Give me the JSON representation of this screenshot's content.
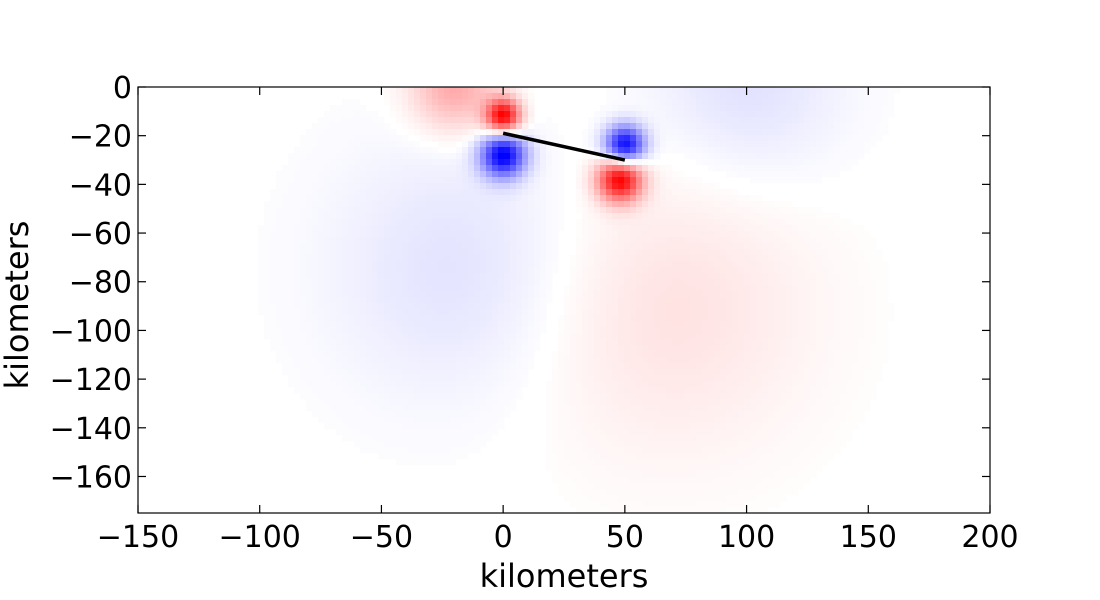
{
  "chart_data": {
    "type": "heatmap",
    "title": "",
    "xlabel": "kilometers",
    "ylabel": "kilometers",
    "xlim": [
      -150,
      200
    ],
    "ylim": [
      -175,
      0
    ],
    "x_ticks": [
      -150,
      -100,
      -50,
      0,
      50,
      100,
      150,
      200
    ],
    "y_ticks": [
      0,
      -20,
      -40,
      -60,
      -80,
      -100,
      -120,
      -140,
      -160
    ],
    "x_tick_labels": [
      "−150",
      "−100",
      "−50",
      "0",
      "50",
      "100",
      "150",
      "200"
    ],
    "y_tick_labels": [
      "0",
      "−20",
      "−40",
      "−60",
      "−80",
      "−100",
      "−120",
      "−140",
      "−160"
    ],
    "colormap": {
      "positive": "#ff0000",
      "zero": "#ffffff",
      "negative": "#0000ff"
    },
    "fault_line": {
      "x": [
        0,
        50
      ],
      "y": [
        -19,
        -30
      ],
      "color": "#000000"
    },
    "field_sources": [
      {
        "x": 0,
        "y": -12,
        "amplitude": 1.0,
        "spread": 7,
        "sign": "positive"
      },
      {
        "x": 0,
        "y": -28,
        "amplitude": -1.0,
        "spread": 9,
        "sign": "negative"
      },
      {
        "x": 50,
        "y": -24,
        "amplitude": -1.0,
        "spread": 8,
        "sign": "negative"
      },
      {
        "x": 48,
        "y": -38,
        "amplitude": 1.0,
        "spread": 9,
        "sign": "positive"
      },
      {
        "x": -20,
        "y": 0,
        "amplitude": 0.35,
        "spread": 18,
        "sign": "positive"
      },
      {
        "x": 100,
        "y": 0,
        "amplitude": -0.12,
        "spread": 40,
        "sign": "negative"
      },
      {
        "x": 65,
        "y": -90,
        "amplitude": 0.12,
        "spread": 60,
        "sign": "positive"
      },
      {
        "x": -15,
        "y": -75,
        "amplitude": -0.12,
        "spread": 55,
        "sign": "negative"
      }
    ]
  }
}
